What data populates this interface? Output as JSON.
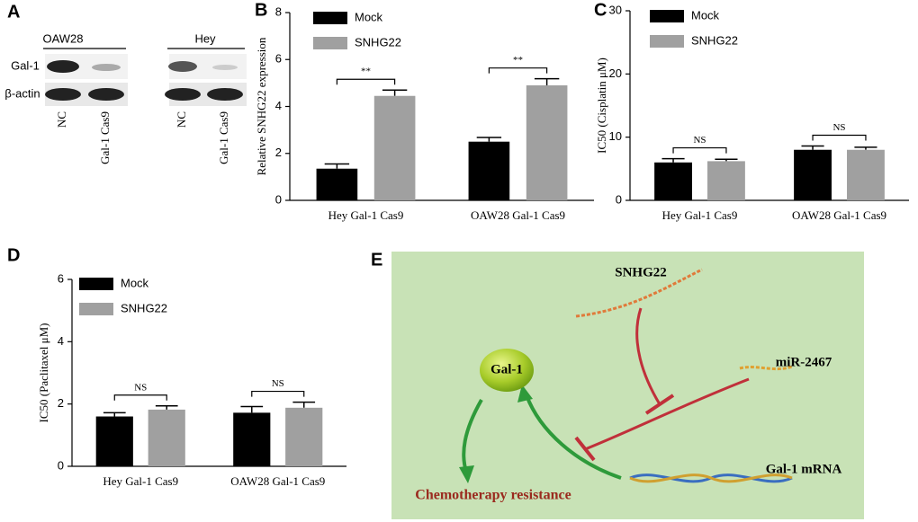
{
  "chart_data": [
    {
      "type": "bar",
      "panel_label": "B",
      "y_label": "Relative SNHG22 expression",
      "categories": [
        "Hey Gal-1 Cas9",
        "OAW28 Gal-1 Cas9"
      ],
      "series": [
        {
          "name": "Mock",
          "color": "#000000",
          "values": [
            1.35,
            2.5
          ],
          "errors": [
            0.2,
            0.18
          ]
        },
        {
          "name": "SNHG22",
          "color": "#a0a0a0",
          "values": [
            4.45,
            4.9
          ],
          "errors": [
            0.25,
            0.28
          ]
        }
      ],
      "annotations": [
        "**",
        "**"
      ],
      "ylim": [
        0,
        8
      ],
      "yticks": [
        0,
        2,
        4,
        6,
        8
      ]
    },
    {
      "type": "bar",
      "panel_label": "C",
      "y_label": "IC50 (Cisplatin μM)",
      "categories": [
        "Hey Gal-1 Cas9",
        "OAW28 Gal-1 Cas9"
      ],
      "series": [
        {
          "name": "Mock",
          "color": "#000000",
          "values": [
            6.0,
            8.0
          ],
          "errors": [
            0.6,
            0.6
          ]
        },
        {
          "name": "SNHG22",
          "color": "#a0a0a0",
          "values": [
            6.2,
            8.0
          ],
          "errors": [
            0.3,
            0.4
          ]
        }
      ],
      "annotations": [
        "NS",
        "NS"
      ],
      "ylim": [
        0,
        30
      ],
      "yticks": [
        0,
        10,
        20,
        30
      ]
    },
    {
      "type": "bar",
      "panel_label": "D",
      "y_label": "IC50 (Paclitaxel μM)",
      "categories": [
        "Hey Gal-1 Cas9",
        "OAW28 Gal-1 Cas9"
      ],
      "series": [
        {
          "name": "Mock",
          "color": "#000000",
          "values": [
            1.6,
            1.72
          ],
          "errors": [
            0.12,
            0.2
          ]
        },
        {
          "name": "SNHG22",
          "color": "#a0a0a0",
          "values": [
            1.82,
            1.88
          ],
          "errors": [
            0.12,
            0.18
          ]
        }
      ],
      "annotations": [
        "NS",
        "NS"
      ],
      "ylim": [
        0,
        6
      ],
      "yticks": [
        0,
        2,
        4,
        6
      ]
    }
  ],
  "blot": {
    "panel_label": "A",
    "groups": [
      "OAW28",
      "Hey"
    ],
    "rows": [
      "Gal-1",
      "β-actin"
    ],
    "lanes": [
      "NC",
      "Gal-1 Cas9",
      "NC",
      "Gal-1 Cas9"
    ]
  },
  "diagram": {
    "panel_label": "E",
    "nodes": [
      "SNHG22",
      "miR-2467",
      "Gal-1",
      "Gal-1 mRNA",
      "Chemotherapy resistance"
    ]
  }
}
